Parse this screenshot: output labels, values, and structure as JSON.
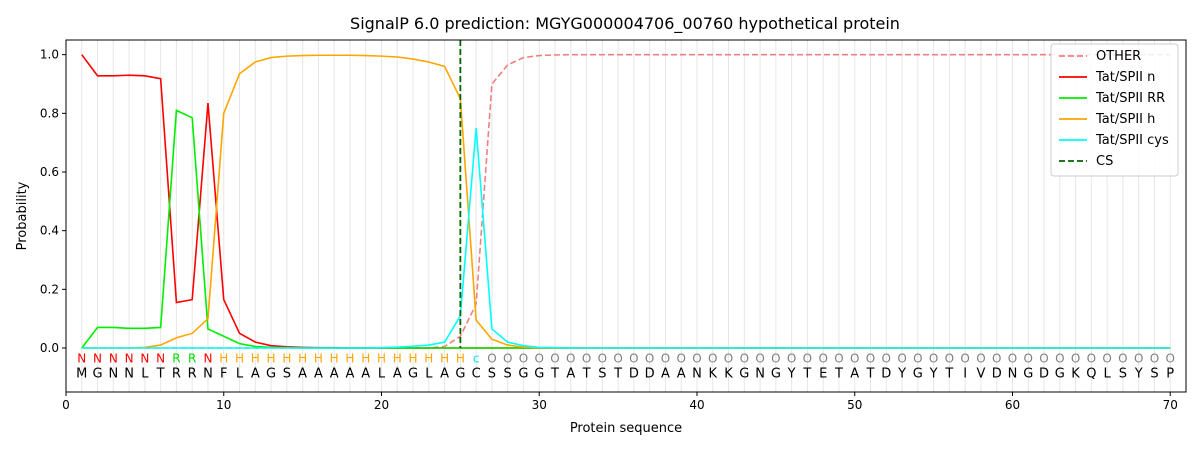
{
  "chart_data": {
    "type": "line",
    "title": "SignalP 6.0 prediction: MGYG000004706_00760 hypothetical protein",
    "xlabel": "Protein sequence",
    "ylabel": "Probability",
    "xlim": [
      0,
      71
    ],
    "ylim": [
      -0.15,
      1.05
    ],
    "xticks": [
      0,
      10,
      20,
      30,
      40,
      50,
      60,
      70
    ],
    "yticks": [
      0.0,
      0.2,
      0.4,
      0.6,
      0.8,
      1.0
    ],
    "grid": "vertical lines at each residue",
    "legend_position": "top-right",
    "cs_position": 25,
    "sequence": [
      "M",
      "G",
      "N",
      "N",
      "L",
      "T",
      "R",
      "R",
      "N",
      "F",
      "L",
      "A",
      "G",
      "S",
      "A",
      "A",
      "A",
      "A",
      "A",
      "L",
      "A",
      "G",
      "L",
      "A",
      "G",
      "C",
      "S",
      "S",
      "G",
      "G",
      "T",
      "A",
      "T",
      "S",
      "T",
      "D",
      "D",
      "A",
      "A",
      "N",
      "K",
      "K",
      "G",
      "N",
      "G",
      "Y",
      "T",
      "E",
      "T",
      "A",
      "T",
      "D",
      "Y",
      "G",
      "Y",
      "T",
      "I",
      "V",
      "D",
      "N",
      "G",
      "D",
      "G",
      "K",
      "Q",
      "L",
      "S",
      "Y",
      "S",
      "P"
    ],
    "region_labels": [
      "N",
      "N",
      "N",
      "N",
      "N",
      "N",
      "R",
      "R",
      "N",
      "H",
      "H",
      "H",
      "H",
      "H",
      "H",
      "H",
      "H",
      "H",
      "H",
      "H",
      "H",
      "H",
      "H",
      "H",
      "H",
      "c",
      "O",
      "O",
      "O",
      "O",
      "O",
      "O",
      "O",
      "O",
      "O",
      "O",
      "O",
      "O",
      "O",
      "O",
      "O",
      "O",
      "O",
      "O",
      "O",
      "O",
      "O",
      "O",
      "O",
      "O",
      "O",
      "O",
      "O",
      "O",
      "O",
      "O",
      "O",
      "O",
      "O",
      "O",
      "O",
      "O",
      "O",
      "O",
      "O",
      "O",
      "O",
      "O",
      "O",
      "O"
    ],
    "region_colors": {
      "N": "#ff0000",
      "R": "#00dd00",
      "H": "#ffa500",
      "c": "#00e5e5",
      "O": "#808080"
    },
    "x": [
      1,
      2,
      3,
      4,
      5,
      6,
      7,
      8,
      9,
      10,
      11,
      12,
      13,
      14,
      15,
      16,
      17,
      18,
      19,
      20,
      21,
      22,
      23,
      24,
      25,
      26,
      27,
      28,
      29,
      30,
      31,
      32,
      33,
      34,
      35,
      36,
      37,
      38,
      39,
      40,
      41,
      42,
      43,
      44,
      45,
      46,
      47,
      48,
      49,
      50,
      51,
      52,
      53,
      54,
      55,
      56,
      57,
      58,
      59,
      60,
      61,
      62,
      63,
      64,
      65,
      66,
      67,
      68,
      69,
      70
    ],
    "series": [
      {
        "name": "OTHER",
        "color": "#f08080",
        "dashed": true,
        "values": [
          0,
          0,
          0,
          0,
          0,
          0,
          0,
          0,
          0,
          0,
          0,
          0,
          0,
          0,
          0,
          0,
          0,
          0,
          0,
          0,
          0,
          0,
          0,
          0.005,
          0.04,
          0.15,
          0.9,
          0.965,
          0.99,
          0.997,
          0.999,
          1,
          1,
          1,
          1,
          1,
          1,
          1,
          1,
          1,
          1,
          1,
          1,
          1,
          1,
          1,
          1,
          1,
          1,
          1,
          1,
          1,
          1,
          1,
          1,
          1,
          1,
          1,
          1,
          1,
          1,
          1,
          1,
          1,
          1,
          1,
          1,
          1,
          1,
          1
        ]
      },
      {
        "name": "Tat/SPII n",
        "color": "#ff0000",
        "dashed": false,
        "values": [
          1.0,
          0.928,
          0.928,
          0.93,
          0.928,
          0.918,
          0.155,
          0.165,
          0.835,
          0.165,
          0.05,
          0.02,
          0.008,
          0.004,
          0.002,
          0.001,
          0.001,
          0,
          0,
          0,
          0,
          0,
          0,
          0,
          0,
          0,
          0,
          0,
          0,
          0,
          0,
          0,
          0,
          0,
          0,
          0,
          0,
          0,
          0,
          0,
          0,
          0,
          0,
          0,
          0,
          0,
          0,
          0,
          0,
          0,
          0,
          0,
          0,
          0,
          0,
          0,
          0,
          0,
          0,
          0,
          0,
          0,
          0,
          0,
          0,
          0,
          0,
          0,
          0,
          0
        ]
      },
      {
        "name": "Tat/SPII RR",
        "color": "#00ee00",
        "dashed": false,
        "values": [
          0,
          0.07,
          0.07,
          0.067,
          0.067,
          0.07,
          0.81,
          0.785,
          0.065,
          0.04,
          0.015,
          0.005,
          0.002,
          0.001,
          0,
          0,
          0,
          0,
          0,
          0,
          0,
          0,
          0,
          0,
          0,
          0,
          0,
          0,
          0,
          0,
          0,
          0,
          0,
          0,
          0,
          0,
          0,
          0,
          0,
          0,
          0,
          0,
          0,
          0,
          0,
          0,
          0,
          0,
          0,
          0,
          0,
          0,
          0,
          0,
          0,
          0,
          0,
          0,
          0,
          0,
          0,
          0,
          0,
          0,
          0,
          0,
          0,
          0,
          0,
          0
        ]
      },
      {
        "name": "Tat/SPII h",
        "color": "#ffa500",
        "dashed": false,
        "values": [
          0,
          0,
          0,
          0,
          0.002,
          0.01,
          0.035,
          0.05,
          0.1,
          0.8,
          0.935,
          0.975,
          0.99,
          0.995,
          0.997,
          0.998,
          0.998,
          0.998,
          0.997,
          0.995,
          0.992,
          0.985,
          0.975,
          0.96,
          0.85,
          0.095,
          0.03,
          0.01,
          0.003,
          0.001,
          0,
          0,
          0,
          0,
          0,
          0,
          0,
          0,
          0,
          0,
          0,
          0,
          0,
          0,
          0,
          0,
          0,
          0,
          0,
          0,
          0,
          0,
          0,
          0,
          0,
          0,
          0,
          0,
          0,
          0,
          0,
          0,
          0,
          0,
          0,
          0,
          0,
          0,
          0,
          0
        ]
      },
      {
        "name": "Tat/SPII cys",
        "color": "#00ffff",
        "dashed": false,
        "values": [
          0,
          0,
          0,
          0,
          0,
          0,
          0,
          0,
          0,
          0,
          0,
          0,
          0,
          0,
          0,
          0,
          0,
          0,
          0,
          0.001,
          0.003,
          0.006,
          0.01,
          0.02,
          0.11,
          0.75,
          0.065,
          0.02,
          0.008,
          0.002,
          0.001,
          0,
          0,
          0,
          0,
          0,
          0,
          0,
          0,
          0,
          0,
          0,
          0,
          0,
          0,
          0,
          0,
          0,
          0,
          0,
          0,
          0,
          0,
          0,
          0,
          0,
          0,
          0,
          0,
          0,
          0,
          0,
          0,
          0,
          0,
          0,
          0,
          0,
          0,
          0
        ]
      }
    ],
    "cs_series": {
      "name": "CS",
      "color": "#006400",
      "dashed": true
    }
  }
}
